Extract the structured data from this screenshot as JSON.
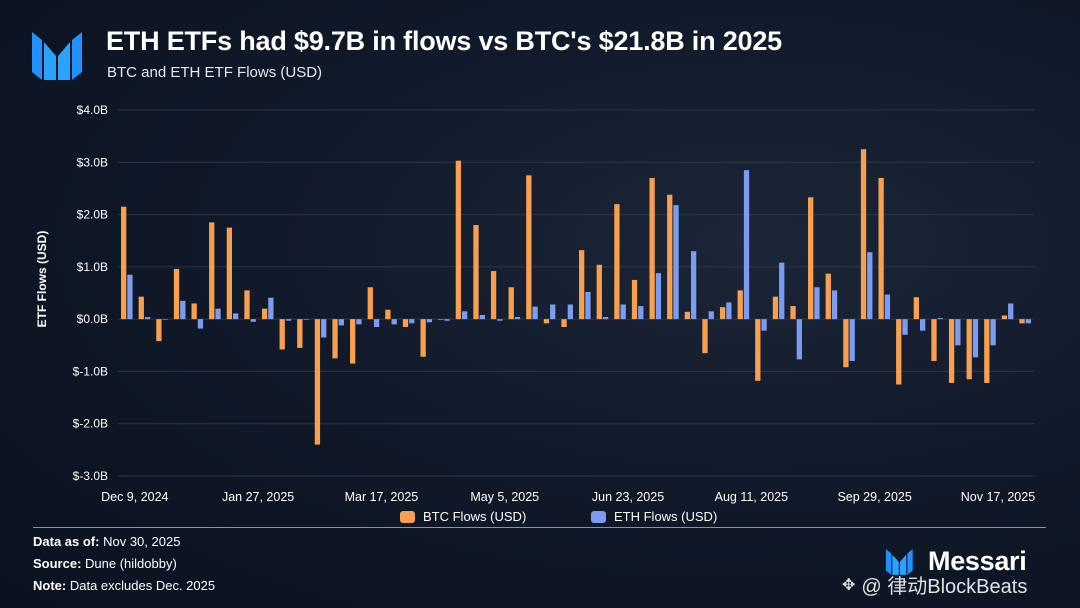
{
  "header": {
    "title": "ETH ETFs had $9.7B in flows vs BTC's $21.8B in 2025",
    "subtitle": "BTC and ETH ETF Flows (USD)"
  },
  "chart_data": {
    "type": "bar",
    "title": "ETH ETFs had $9.7B in flows vs BTC's $21.8B in 2025",
    "subtitle": "BTC and ETH ETF Flows (USD)",
    "ylabel": "ETF Flows (USD)",
    "xlabel": "",
    "ylim": [
      -3.0,
      4.0
    ],
    "yticks": [
      4.0,
      3.0,
      2.0,
      1.0,
      0.0,
      -1.0,
      -2.0,
      -3.0
    ],
    "ytick_labels": [
      "$4.0B",
      "$3.0B",
      "$2.0B",
      "$1.0B",
      "$0.0B",
      "$-1.0B",
      "$-2.0B",
      "$-3.0B"
    ],
    "x_tick_labels": [
      "Dec 9, 2024",
      "Jan 27, 2025",
      "Mar 17, 2025",
      "May 5, 2025",
      "Jun 23, 2025",
      "Aug 11, 2025",
      "Sep 29, 2025",
      "Nov 17, 2025"
    ],
    "x_tick_every": 7,
    "grid": true,
    "legend_position": "bottom-center",
    "colors": {
      "btc": "#f9a04e",
      "eth": "#7b9cf0"
    },
    "series": [
      {
        "name": "BTC Flows (USD)",
        "values": [
          2.15,
          0.43,
          -0.42,
          0.96,
          0.3,
          1.85,
          1.75,
          0.55,
          0.2,
          -0.58,
          -0.55,
          -2.4,
          -0.75,
          -0.85,
          0.61,
          0.18,
          -0.15,
          -0.72,
          0.0,
          3.03,
          1.8,
          0.92,
          0.61,
          2.75,
          -0.08,
          -0.15,
          1.32,
          1.04,
          2.2,
          0.75,
          2.7,
          2.38,
          0.14,
          -0.65,
          0.23,
          0.55,
          -1.18,
          0.43,
          0.25,
          2.33,
          0.87,
          -0.92,
          3.25,
          2.7,
          -1.25,
          0.42,
          -0.8,
          -1.22,
          -1.15,
          -1.22,
          0.07,
          -0.08
        ]
      },
      {
        "name": "ETH Flows (USD)",
        "values": [
          0.85,
          0.04,
          0.0,
          0.35,
          -0.18,
          0.2,
          0.11,
          -0.05,
          0.41,
          -0.03,
          0.0,
          -0.35,
          -0.12,
          -0.1,
          -0.15,
          -0.1,
          -0.08,
          -0.06,
          -0.03,
          0.15,
          0.08,
          -0.03,
          0.04,
          0.24,
          0.28,
          0.28,
          0.52,
          0.04,
          0.28,
          0.25,
          0.88,
          2.18,
          1.3,
          0.15,
          0.32,
          2.85,
          -0.22,
          1.08,
          -0.77,
          0.61,
          0.55,
          -0.8,
          1.28,
          0.47,
          -0.3,
          -0.22,
          0.02,
          -0.5,
          -0.73,
          -0.5,
          0.3,
          -0.08
        ]
      }
    ]
  },
  "legend": {
    "btc_label": "BTC Flows (USD)",
    "eth_label": "ETH Flows (USD)"
  },
  "footer": {
    "data_as_of_label": "Data as of:",
    "data_as_of_value": "Nov 30, 2025",
    "source_label": "Source:",
    "source_value": "Dune (hildobby)",
    "note_label": "Note:",
    "note_value": "Data excludes Dec. 2025"
  },
  "brand": {
    "name": "Messari",
    "logo_icon": "messari-logo-icon"
  },
  "watermark": {
    "text": "@ 律动BlockBeats",
    "icon": "blockbeats-icon"
  }
}
